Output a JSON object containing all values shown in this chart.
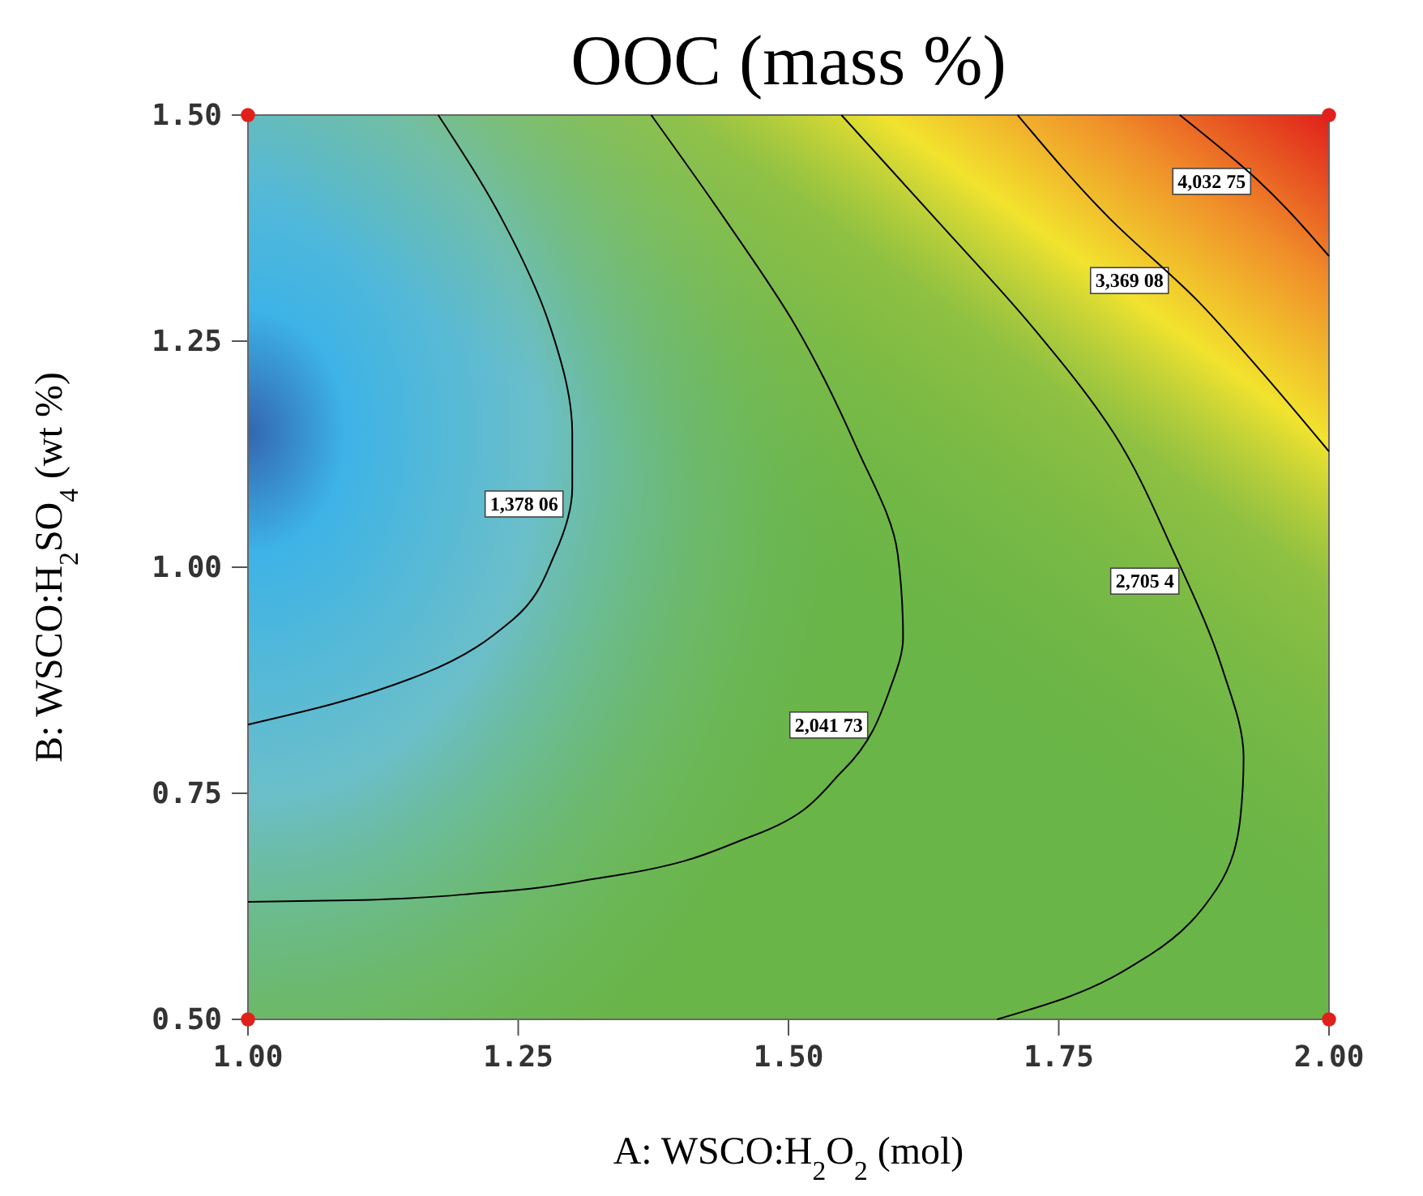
{
  "chart_data": {
    "type": "line",
    "title": "OOC (mass %)",
    "xlabel": "A: WSCO:H$_{2}$O$_{2}$ (mol)",
    "ylabel": "B: WSCO:H$_{2}$SO$_{4}$ (wt %)",
    "xlim": [
      1,
      2
    ],
    "ylim": [
      0.5,
      1.5
    ],
    "xticks": [
      {
        "value": 1,
        "label": "1.00"
      },
      {
        "value": 1.25,
        "label": "1.25"
      },
      {
        "value": 1.5,
        "label": "1.50"
      },
      {
        "value": 1.75,
        "label": "1.75"
      },
      {
        "value": 2,
        "label": "2.00"
      }
    ],
    "yticks": [
      {
        "value": 0.5,
        "label": "0.50"
      },
      {
        "value": 0.75,
        "label": "0.75"
      },
      {
        "value": 1,
        "label": "1.00"
      },
      {
        "value": 1.25,
        "label": "1.25"
      },
      {
        "value": 1.5,
        "label": "1.50"
      }
    ],
    "grid": false,
    "legend": false,
    "series": [
      {
        "name": "1,378 06",
        "color": "#000000",
        "x": [
          1.176,
          1.234,
          1.279,
          1.3,
          1.3,
          1.284,
          1.245,
          1.162,
          1.079,
          1.0
        ],
        "values": [
          1.5,
          1.387,
          1.268,
          1.148,
          1.088,
          1.015,
          0.942,
          0.882,
          0.849,
          0.826
        ]
      },
      {
        "name": "2,041 73",
        "color": "#000000",
        "x": [
          1.373,
          1.44,
          1.506,
          1.562,
          1.601,
          1.606,
          1.595,
          1.551,
          1.467,
          1.329,
          1.218,
          1.107,
          1.0
        ],
        "values": [
          1.5,
          1.387,
          1.268,
          1.135,
          1.015,
          0.922,
          0.869,
          0.776,
          0.703,
          0.657,
          0.64,
          0.632,
          0.63
        ]
      },
      {
        "name": "2,705 4",
        "color": "#000000",
        "x": [
          1.549,
          1.64,
          1.724,
          1.801,
          1.857,
          1.901,
          1.921,
          1.918,
          1.896,
          1.834,
          1.757,
          1.693
        ],
        "values": [
          1.5,
          1.38,
          1.268,
          1.148,
          1.015,
          0.889,
          0.79,
          0.723,
          0.644,
          0.571,
          0.524,
          0.5
        ]
      },
      {
        "name": "3,369 08",
        "color": "#000000",
        "x": [
          1.712,
          1.796,
          1.879,
          1.934,
          2.0
        ],
        "values": [
          1.5,
          1.387,
          1.294,
          1.221,
          1.128
        ]
      },
      {
        "name": "4,032 75",
        "color": "#000000",
        "x": [
          1.862,
          1.935,
          2.0
        ],
        "values": [
          1.5,
          1.427,
          1.344
        ]
      },
      {
        "type": "scatter",
        "marker": "circle",
        "color": "#e0201b",
        "x": [
          1.0,
          1.0,
          2.0,
          2.0
        ],
        "values": [
          1.5,
          0.5,
          1.5,
          0.5
        ]
      }
    ]
  }
}
